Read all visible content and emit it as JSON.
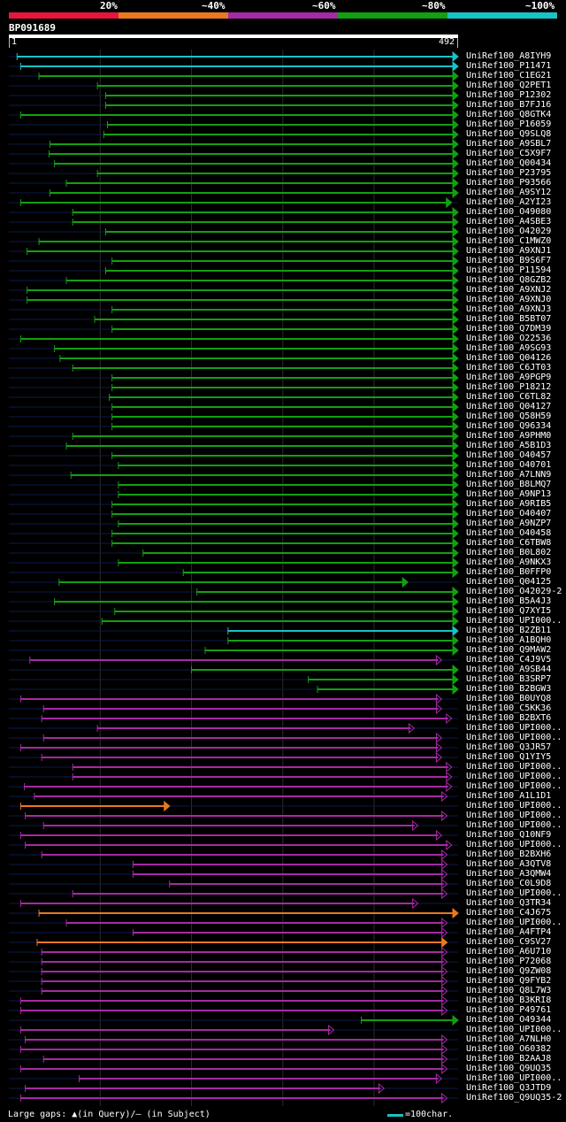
{
  "query": {
    "id": "BP091689",
    "start": "1",
    "end": "492"
  },
  "scale_labels": [
    "20%",
    "~40%",
    "~60%",
    "~80%",
    "~100%"
  ],
  "colors": {
    "red": "#e8163c",
    "orange": "#e87822",
    "purple": "#a52aa5",
    "green": "#12a012",
    "cyan": "#19c2c6"
  },
  "legend": {
    "text": "Large gaps: ▲(in Query)/‒ (in Subject)",
    "key": "=100char."
  },
  "chart_data": {
    "type": "alignment-overview",
    "title": "BP091689",
    "query_length": 492,
    "hits": [
      {
        "label": "UniRef100_A8IYH9",
        "color": "cyan",
        "start": 9,
        "end": 492
      },
      {
        "label": "UniRef100_P11471",
        "color": "cyan",
        "start": 13,
        "end": 492
      },
      {
        "label": "UniRef100_C1EG21",
        "color": "green",
        "start": 33,
        "end": 492
      },
      {
        "label": "UniRef100_Q2PET1",
        "color": "green",
        "start": 97,
        "end": 492
      },
      {
        "label": "UniRef100_P12302",
        "color": "green",
        "start": 106,
        "end": 492
      },
      {
        "label": "UniRef100_B7FJ16",
        "color": "green",
        "start": 106,
        "end": 492
      },
      {
        "label": "UniRef100_Q8GTK4",
        "color": "green",
        "start": 13,
        "end": 492
      },
      {
        "label": "UniRef100_P16059",
        "color": "green",
        "start": 108,
        "end": 492
      },
      {
        "label": "UniRef100_Q9SLQ8",
        "color": "green",
        "start": 104,
        "end": 492
      },
      {
        "label": "UniRef100_A9SBL7",
        "color": "green",
        "start": 45,
        "end": 492
      },
      {
        "label": "UniRef100_C5X9F7",
        "color": "green",
        "start": 44,
        "end": 492
      },
      {
        "label": "UniRef100_Q00434",
        "color": "green",
        "start": 50,
        "end": 492
      },
      {
        "label": "UniRef100_P23795",
        "color": "green",
        "start": 97,
        "end": 492
      },
      {
        "label": "UniRef100_P93566",
        "color": "green",
        "start": 63,
        "end": 492
      },
      {
        "label": "UniRef100_A9SY12",
        "color": "green",
        "start": 45,
        "end": 492
      },
      {
        "label": "UniRef100_A2YI23",
        "color": "green",
        "start": 13,
        "end": 485
      },
      {
        "label": "UniRef100_O49080",
        "color": "green",
        "start": 70,
        "end": 492
      },
      {
        "label": "UniRef100_A4SBE3",
        "color": "green",
        "start": 70,
        "end": 492
      },
      {
        "label": "UniRef100_O42029",
        "color": "green",
        "start": 106,
        "end": 492
      },
      {
        "label": "UniRef100_C1MWZ0",
        "color": "green",
        "start": 33,
        "end": 492
      },
      {
        "label": "UniRef100_A9XNJ1",
        "color": "green",
        "start": 20,
        "end": 492
      },
      {
        "label": "UniRef100_B9S6F7",
        "color": "green",
        "start": 113,
        "end": 492
      },
      {
        "label": "UniRef100_P11594",
        "color": "green",
        "start": 106,
        "end": 492
      },
      {
        "label": "UniRef100_Q8GZB2",
        "color": "green",
        "start": 63,
        "end": 492
      },
      {
        "label": "UniRef100_A9XNJ2",
        "color": "green",
        "start": 20,
        "end": 492
      },
      {
        "label": "UniRef100_A9XNJ0",
        "color": "green",
        "start": 20,
        "end": 492
      },
      {
        "label": "UniRef100_A9XNJ3",
        "color": "green",
        "start": 113,
        "end": 492
      },
      {
        "label": "UniRef100_B5BT07",
        "color": "green",
        "start": 94,
        "end": 492
      },
      {
        "label": "UniRef100_Q7DM39",
        "color": "green",
        "start": 113,
        "end": 492
      },
      {
        "label": "UniRef100_O22536",
        "color": "green",
        "start": 13,
        "end": 492
      },
      {
        "label": "UniRef100_A9SG93",
        "color": "green",
        "start": 50,
        "end": 492
      },
      {
        "label": "UniRef100_Q04126",
        "color": "green",
        "start": 56,
        "end": 492
      },
      {
        "label": "UniRef100_C6JT03",
        "color": "green",
        "start": 70,
        "end": 492
      },
      {
        "label": "UniRef100_A9PGP9",
        "color": "green",
        "start": 113,
        "end": 492
      },
      {
        "label": "UniRef100_P18212",
        "color": "green",
        "start": 113,
        "end": 492
      },
      {
        "label": "UniRef100_C6TL82",
        "color": "green",
        "start": 110,
        "end": 492
      },
      {
        "label": "UniRef100_Q04127",
        "color": "green",
        "start": 113,
        "end": 492
      },
      {
        "label": "UniRef100_Q58H59",
        "color": "green",
        "start": 113,
        "end": 492
      },
      {
        "label": "UniRef100_Q96334",
        "color": "green",
        "start": 113,
        "end": 492
      },
      {
        "label": "UniRef100_A9PHM0",
        "color": "green",
        "start": 70,
        "end": 492
      },
      {
        "label": "UniRef100_A5B1D3",
        "color": "green",
        "start": 63,
        "end": 492
      },
      {
        "label": "UniRef100_O40457",
        "color": "green",
        "start": 113,
        "end": 492
      },
      {
        "label": "UniRef100_O40701",
        "color": "green",
        "start": 120,
        "end": 492
      },
      {
        "label": "UniRef100_A7LNN9",
        "color": "green",
        "start": 68,
        "end": 492
      },
      {
        "label": "UniRef100_B8LMQ7",
        "color": "green",
        "start": 120,
        "end": 492
      },
      {
        "label": "UniRef100_A9NP13",
        "color": "green",
        "start": 120,
        "end": 492
      },
      {
        "label": "UniRef100_A9RIB5",
        "color": "green",
        "start": 113,
        "end": 492
      },
      {
        "label": "UniRef100_O40407",
        "color": "green",
        "start": 113,
        "end": 492
      },
      {
        "label": "UniRef100_A9NZP7",
        "color": "green",
        "start": 120,
        "end": 492
      },
      {
        "label": "UniRef100_O40458",
        "color": "green",
        "start": 113,
        "end": 492
      },
      {
        "label": "UniRef100_C6TBW8",
        "color": "green",
        "start": 113,
        "end": 492
      },
      {
        "label": "UniRef100_B0L802",
        "color": "green",
        "start": 147,
        "end": 492
      },
      {
        "label": "UniRef100_A9NKX3",
        "color": "green",
        "start": 120,
        "end": 492
      },
      {
        "label": "UniRef100_B0FFP0",
        "color": "green",
        "start": 191,
        "end": 492
      },
      {
        "label": "UniRef100_Q04125",
        "color": "green",
        "start": 55,
        "end": 437
      },
      {
        "label": "UniRef100_O42029-2",
        "color": "green",
        "start": 206,
        "end": 492
      },
      {
        "label": "UniRef100_B5A4J3",
        "color": "green",
        "start": 50,
        "end": 492
      },
      {
        "label": "UniRef100_Q7XYI5",
        "color": "green",
        "start": 116,
        "end": 492
      },
      {
        "label": "UniRef100_UPI000..",
        "color": "green",
        "start": 102,
        "end": 492
      },
      {
        "label": "UniRef100_B2ZB11",
        "color": "cyan",
        "start": 240,
        "end": 492
      },
      {
        "label": "UniRef100_A1BQH0",
        "color": "green",
        "start": 240,
        "end": 492
      },
      {
        "label": "UniRef100_Q9MAW2",
        "color": "green",
        "start": 215,
        "end": 492
      },
      {
        "label": "UniRef100_C4J9V5",
        "color": "purple",
        "start": 23,
        "end": 474
      },
      {
        "label": "UniRef100_A9SB44",
        "color": "green",
        "start": 200,
        "end": 492
      },
      {
        "label": "UniRef100_B3SRP7",
        "color": "green",
        "start": 328,
        "end": 492
      },
      {
        "label": "UniRef100_B2BGW3",
        "color": "green",
        "start": 338,
        "end": 492
      },
      {
        "label": "UniRef100_B0UYQ8",
        "color": "purple",
        "start": 13,
        "end": 474
      },
      {
        "label": "UniRef100_C5KK36",
        "color": "purple",
        "start": 38,
        "end": 474
      },
      {
        "label": "UniRef100_B2BXT6",
        "color": "purple",
        "start": 36,
        "end": 485
      },
      {
        "label": "UniRef100_UPI000..",
        "color": "purple",
        "start": 97,
        "end": 444
      },
      {
        "label": "UniRef100_UPI000..",
        "color": "purple",
        "start": 38,
        "end": 474
      },
      {
        "label": "UniRef100_Q3JR57",
        "color": "purple",
        "start": 13,
        "end": 474
      },
      {
        "label": "UniRef100_Q1YIY5",
        "color": "purple",
        "start": 36,
        "end": 474
      },
      {
        "label": "UniRef100_UPI000..",
        "color": "purple",
        "start": 70,
        "end": 485
      },
      {
        "label": "UniRef100_UPI000..",
        "color": "purple",
        "start": 70,
        "end": 485
      },
      {
        "label": "UniRef100_UPI000..",
        "color": "purple",
        "start": 17,
        "end": 485
      },
      {
        "label": "UniRef100_A1L1D1",
        "color": "purple",
        "start": 28,
        "end": 480
      },
      {
        "label": "UniRef100_UPI000..",
        "color": "orange",
        "start": 13,
        "end": 176
      },
      {
        "label": "UniRef100_UPI000..",
        "color": "purple",
        "start": 18,
        "end": 480
      },
      {
        "label": "UniRef100_UPI000..",
        "color": "purple",
        "start": 38,
        "end": 448
      },
      {
        "label": "UniRef100_Q10NF9",
        "color": "purple",
        "start": 13,
        "end": 474
      },
      {
        "label": "UniRef100_UPI000..",
        "color": "purple",
        "start": 18,
        "end": 485
      },
      {
        "label": "UniRef100_B2BXH6",
        "color": "purple",
        "start": 36,
        "end": 480
      },
      {
        "label": "UniRef100_A3QTV8",
        "color": "purple",
        "start": 136,
        "end": 480
      },
      {
        "label": "UniRef100_A3QMW4",
        "color": "purple",
        "start": 136,
        "end": 480
      },
      {
        "label": "UniRef100_C0L9D8",
        "color": "purple",
        "start": 176,
        "end": 480
      },
      {
        "label": "UniRef100_UPI000..",
        "color": "purple",
        "start": 70,
        "end": 480
      },
      {
        "label": "UniRef100_Q3TR34",
        "color": "purple",
        "start": 13,
        "end": 448
      },
      {
        "label": "UniRef100_C4J675",
        "color": "orange",
        "start": 33,
        "end": 492
      },
      {
        "label": "UniRef100_UPI000..",
        "color": "purple",
        "start": 63,
        "end": 480
      },
      {
        "label": "UniRef100_A4FTP4",
        "color": "purple",
        "start": 136,
        "end": 480
      },
      {
        "label": "UniRef100_C9SV27",
        "color": "orange",
        "start": 31,
        "end": 480
      },
      {
        "label": "UniRef100_A6U710",
        "color": "purple",
        "start": 36,
        "end": 480
      },
      {
        "label": "UniRef100_P72068",
        "color": "purple",
        "start": 36,
        "end": 480
      },
      {
        "label": "UniRef100_Q9ZW08",
        "color": "purple",
        "start": 36,
        "end": 480
      },
      {
        "label": "UniRef100_Q9FYB2",
        "color": "purple",
        "start": 36,
        "end": 480
      },
      {
        "label": "UniRef100_Q8L7W3",
        "color": "purple",
        "start": 36,
        "end": 480
      },
      {
        "label": "UniRef100_B3KRI8",
        "color": "purple",
        "start": 13,
        "end": 480
      },
      {
        "label": "UniRef100_P49761",
        "color": "purple",
        "start": 13,
        "end": 480
      },
      {
        "label": "UniRef100_O49344",
        "color": "green",
        "start": 386,
        "end": 492
      },
      {
        "label": "UniRef100_UPI000..",
        "color": "purple",
        "start": 13,
        "end": 356
      },
      {
        "label": "UniRef100_A7NLH0",
        "color": "purple",
        "start": 18,
        "end": 480
      },
      {
        "label": "UniRef100_O60382",
        "color": "purple",
        "start": 13,
        "end": 480
      },
      {
        "label": "UniRef100_B2AAJ8",
        "color": "purple",
        "start": 38,
        "end": 480
      },
      {
        "label": "UniRef100_Q9UQ35",
        "color": "purple",
        "start": 13,
        "end": 480
      },
      {
        "label": "UniRef100_UPI000..",
        "color": "purple",
        "start": 77,
        "end": 474
      },
      {
        "label": "UniRef100_Q3JTD9",
        "color": "purple",
        "start": 18,
        "end": 411
      },
      {
        "label": "UniRef100_Q9UQ35-2",
        "color": "purple",
        "start": 13,
        "end": 480
      }
    ]
  }
}
